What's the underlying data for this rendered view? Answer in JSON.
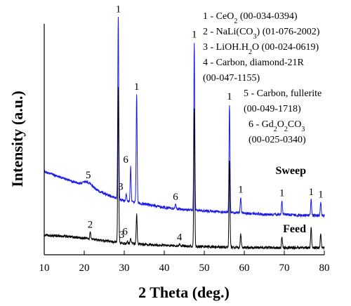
{
  "chart_data": {
    "type": "line",
    "xlabel": "2 Theta (deg.)",
    "ylabel": "Intensity (a.u.)",
    "xlim": [
      10,
      80
    ],
    "x_ticks": [
      10,
      20,
      30,
      40,
      50,
      60,
      70,
      80
    ],
    "y_ticks_shown": false,
    "legend": {
      "placement": "top-right",
      "entries": [
        {
          "lines": [
            {
              "prefix": "1 - CeO",
              "sub": "2",
              "suffix": " (00-034-0394)"
            }
          ]
        },
        {
          "lines": [
            {
              "prefix": "2 - NaLi(CO",
              "sub": "3",
              "suffix": ") (01-076-2002)"
            }
          ]
        },
        {
          "lines": [
            {
              "prefix": "3 - LiOH.H",
              "sub": "2",
              "suffix": "O (00-024-0619)"
            }
          ]
        },
        {
          "lines": [
            {
              "prefix": "4 - Carbon, diamond-21R",
              "sub": "",
              "suffix": ""
            },
            {
              "prefix": "(00-047-1155)",
              "sub": "",
              "suffix": ""
            }
          ]
        },
        {
          "lines": [
            {
              "prefix": "5 - Carbon, fullerite",
              "sub": "",
              "suffix": ""
            },
            {
              "prefix": "(00-049-1718)",
              "sub": "",
              "suffix": ""
            }
          ]
        },
        {
          "lines": [
            {
              "prefix": "6 - Gd",
              "sub": "2",
              "mid": "O",
              "sub2": "2",
              "suffix": "CO",
              "sub3": "3"
            },
            {
              "prefix": "(00-025-0340)",
              "sub": "",
              "suffix": ""
            }
          ]
        }
      ]
    },
    "series": [
      {
        "name": "Sweep",
        "color": "#1a1ae6",
        "baseline": [
          [
            10,
            0.36
          ],
          [
            15,
            0.33
          ],
          [
            20,
            0.3
          ],
          [
            25,
            0.265
          ],
          [
            28,
            0.245
          ],
          [
            30,
            0.235
          ],
          [
            35,
            0.22
          ],
          [
            40,
            0.205
          ],
          [
            45,
            0.195
          ],
          [
            50,
            0.19
          ],
          [
            55,
            0.185
          ],
          [
            60,
            0.18
          ],
          [
            65,
            0.175
          ],
          [
            70,
            0.175
          ],
          [
            75,
            0.17
          ],
          [
            80,
            0.17
          ]
        ],
        "peaks": [
          {
            "x": 28.5,
            "height": 0.79,
            "label": "1"
          },
          {
            "x": 30.5,
            "height": 0.03,
            "label": "3"
          },
          {
            "x": 31.6,
            "height": 0.15,
            "label": "6"
          },
          {
            "x": 33.1,
            "height": 0.47,
            "label": "1"
          },
          {
            "x": 42.8,
            "height": 0.02,
            "label": "6"
          },
          {
            "x": 47.5,
            "height": 0.73,
            "label": "1"
          },
          {
            "x": 56.3,
            "height": 0.47,
            "label": "1"
          },
          {
            "x": 59.1,
            "height": 0.07,
            "label": "1"
          },
          {
            "x": 69.4,
            "height": 0.06,
            "label": "1"
          },
          {
            "x": 76.7,
            "height": 0.07,
            "label": "1"
          },
          {
            "x": 79.1,
            "height": 0.06,
            "label": "1"
          }
        ],
        "bumps": [
          {
            "x": 21.0,
            "height": 0.02,
            "label": "5"
          }
        ]
      },
      {
        "name": "Feed",
        "color": "#000000",
        "baseline": [
          [
            10,
            0.085
          ],
          [
            15,
            0.08
          ],
          [
            20,
            0.072
          ],
          [
            25,
            0.06
          ],
          [
            28,
            0.055
          ],
          [
            30,
            0.05
          ],
          [
            35,
            0.045
          ],
          [
            40,
            0.04
          ],
          [
            45,
            0.038
          ],
          [
            50,
            0.035
          ],
          [
            55,
            0.033
          ],
          [
            60,
            0.032
          ],
          [
            65,
            0.031
          ],
          [
            70,
            0.03
          ],
          [
            75,
            0.03
          ],
          [
            80,
            0.03
          ]
        ],
        "peaks": [
          {
            "x": 21.5,
            "height": 0.03,
            "label": "2"
          },
          {
            "x": 28.5,
            "height": 0.67,
            "label": ""
          },
          {
            "x": 30.8,
            "height": 0.005,
            "label": "3"
          },
          {
            "x": 31.6,
            "height": 0.02,
            "label": "6"
          },
          {
            "x": 33.1,
            "height": 0.13,
            "label": ""
          },
          {
            "x": 43.8,
            "height": 0.005,
            "label": "4"
          },
          {
            "x": 47.5,
            "height": 0.6,
            "label": ""
          },
          {
            "x": 56.3,
            "height": 0.38,
            "label": ""
          },
          {
            "x": 59.1,
            "height": 0.06,
            "label": ""
          },
          {
            "x": 69.4,
            "height": 0.05,
            "label": ""
          },
          {
            "x": 76.7,
            "height": 0.09,
            "label": ""
          },
          {
            "x": 79.1,
            "height": 0.06,
            "label": ""
          }
        ],
        "bumps": []
      }
    ]
  }
}
